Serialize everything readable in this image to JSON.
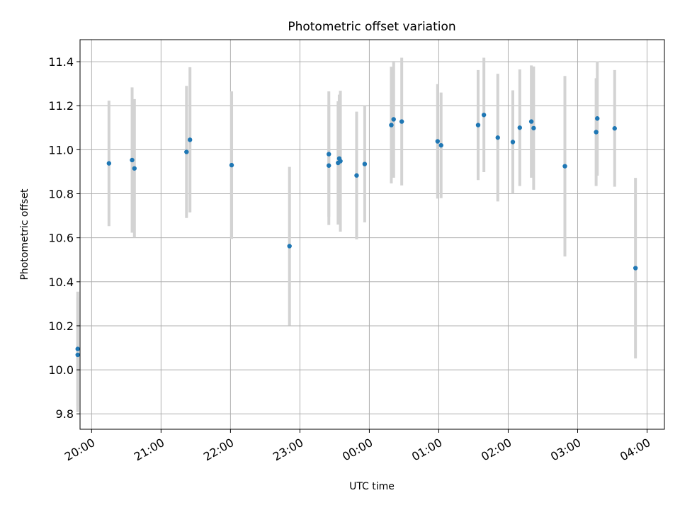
{
  "chart_data": {
    "type": "scatter",
    "title": "Photometric offset variation",
    "xlabel": "UTC time",
    "ylabel": "Photometric offset",
    "xlim": [
      "19:50",
      "04:15"
    ],
    "ylim": [
      9.73,
      11.5
    ],
    "x_ticks": [
      "20:00",
      "21:00",
      "22:00",
      "23:00",
      "00:00",
      "01:00",
      "02:00",
      "03:00",
      "04:00"
    ],
    "y_ticks": [
      "9.8",
      "10.0",
      "10.2",
      "10.4",
      "10.6",
      "10.8",
      "11.0",
      "11.2",
      "11.4"
    ],
    "grid": true,
    "colors": {
      "point": "#1f77b4",
      "errorbar": "#d3d3d3",
      "grid": "#b0b0b0"
    },
    "series": [
      {
        "points": [
          {
            "x": "19:48",
            "y": 10.095,
            "err": 0.26
          },
          {
            "x": "19:48",
            "y": 10.068,
            "err": 0.26
          },
          {
            "x": "20:15",
            "y": 10.938,
            "err": 0.285
          },
          {
            "x": "20:35",
            "y": 10.953,
            "err": 0.33
          },
          {
            "x": "20:37",
            "y": 10.915,
            "err": 0.315
          },
          {
            "x": "21:22",
            "y": 10.99,
            "err": 0.3
          },
          {
            "x": "21:25",
            "y": 11.045,
            "err": 0.33
          },
          {
            "x": "22:01",
            "y": 10.93,
            "err": 0.335
          },
          {
            "x": "22:51",
            "y": 10.562,
            "err": 0.36
          },
          {
            "x": "23:25",
            "y": 10.928,
            "err": 0.27
          },
          {
            "x": "23:25",
            "y": 10.98,
            "err": 0.285
          },
          {
            "x": "23:33",
            "y": 10.94,
            "err": 0.28
          },
          {
            "x": "23:34",
            "y": 10.96,
            "err": 0.29
          },
          {
            "x": "23:35",
            "y": 10.948,
            "err": 0.32
          },
          {
            "x": "23:49",
            "y": 10.883,
            "err": 0.29
          },
          {
            "x": "23:56",
            "y": 10.935,
            "err": 0.265
          },
          {
            "x": "00:19",
            "y": 11.112,
            "err": 0.265
          },
          {
            "x": "00:21",
            "y": 11.138,
            "err": 0.265
          },
          {
            "x": "00:28",
            "y": 11.128,
            "err": 0.29
          },
          {
            "x": "00:59",
            "y": 11.038,
            "err": 0.26
          },
          {
            "x": "01:02",
            "y": 11.02,
            "err": 0.24
          },
          {
            "x": "01:34",
            "y": 11.112,
            "err": 0.25
          },
          {
            "x": "01:39",
            "y": 11.158,
            "err": 0.26
          },
          {
            "x": "01:51",
            "y": 11.055,
            "err": 0.29
          },
          {
            "x": "02:04",
            "y": 11.035,
            "err": 0.235
          },
          {
            "x": "02:10",
            "y": 11.1,
            "err": 0.265
          },
          {
            "x": "02:20",
            "y": 11.128,
            "err": 0.255
          },
          {
            "x": "02:22",
            "y": 11.098,
            "err": 0.28
          },
          {
            "x": "02:49",
            "y": 10.925,
            "err": 0.41
          },
          {
            "x": "03:16",
            "y": 11.08,
            "err": 0.245
          },
          {
            "x": "03:17",
            "y": 11.142,
            "err": 0.26
          },
          {
            "x": "03:32",
            "y": 11.097,
            "err": 0.265
          },
          {
            "x": "03:50",
            "y": 10.462,
            "err": 0.41
          }
        ]
      }
    ]
  }
}
